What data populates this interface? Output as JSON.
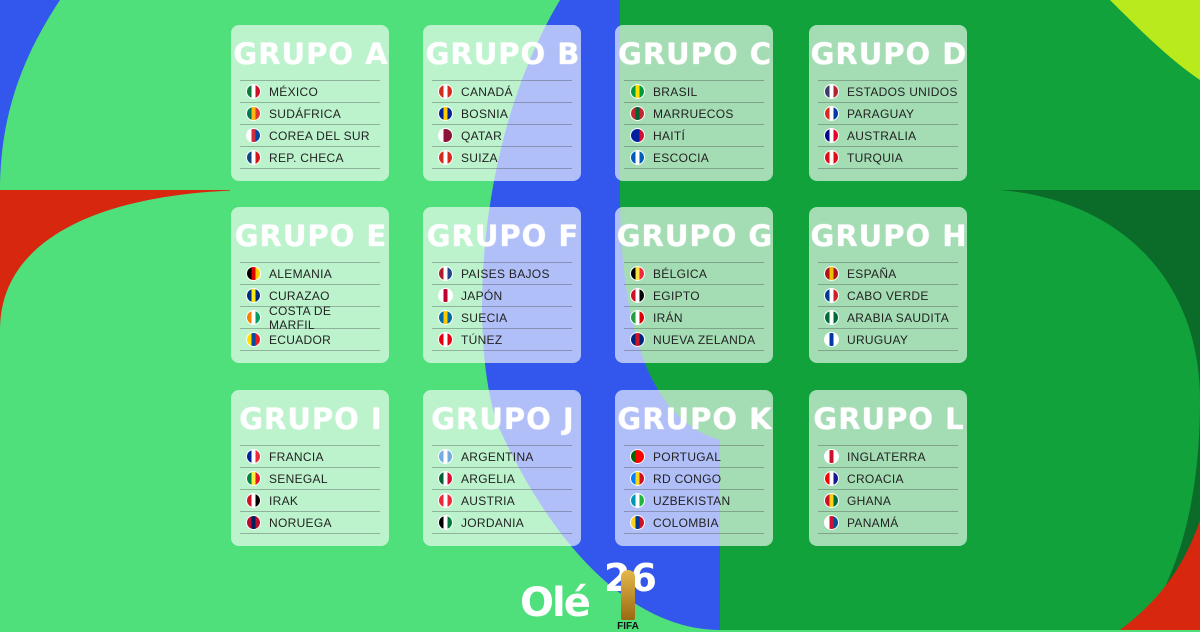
{
  "colors": {
    "light_green": "#4fe07c",
    "blue": "#3357ec",
    "dark_green": "#11a23c",
    "deep_green": "#0b6b28",
    "red": "#d7280f",
    "lime": "#b9ea1c"
  },
  "groups": [
    {
      "title": "GRUPO A",
      "teams": [
        {
          "name": "MÉXICO",
          "flag": [
            "#0a7a3a",
            "#fff",
            "#ce1126"
          ]
        },
        {
          "name": "SUDÁFRICA",
          "flag": [
            "#007a4d",
            "#ffb612",
            "#de3831"
          ]
        },
        {
          "name": "COREA DEL SUR",
          "flag": [
            "#fff",
            "#cd2e3a",
            "#0047a0"
          ]
        },
        {
          "name": "REP. CHECA",
          "flag": [
            "#11457e",
            "#fff",
            "#d7141a"
          ]
        }
      ]
    },
    {
      "title": "GRUPO B",
      "teams": [
        {
          "name": "CANADÁ",
          "flag": [
            "#d52b1e",
            "#fff",
            "#d52b1e"
          ]
        },
        {
          "name": "BOSNIA",
          "flag": [
            "#002395",
            "#fecb00",
            "#002395"
          ]
        },
        {
          "name": "QATAR",
          "flag": [
            "#fff",
            "#8a1538",
            "#8a1538"
          ]
        },
        {
          "name": "SUIZA",
          "flag": [
            "#d52b1e",
            "#fff",
            "#d52b1e"
          ]
        }
      ]
    },
    {
      "title": "GRUPO C",
      "teams": [
        {
          "name": "BRASIL",
          "flag": [
            "#009c3b",
            "#ffdf00",
            "#009c3b"
          ]
        },
        {
          "name": "MARRUECOS",
          "flag": [
            "#c1272d",
            "#006233",
            "#c1272d"
          ]
        },
        {
          "name": "HAITÍ",
          "flag": [
            "#00209f",
            "#00209f",
            "#d21034"
          ]
        },
        {
          "name": "ESCOCIA",
          "flag": [
            "#005eb8",
            "#fff",
            "#005eb8"
          ]
        }
      ]
    },
    {
      "title": "GRUPO D",
      "teams": [
        {
          "name": "ESTADOS UNIDOS",
          "flag": [
            "#3c3b6e",
            "#fff",
            "#b22234"
          ]
        },
        {
          "name": "PARAGUAY",
          "flag": [
            "#d52b1e",
            "#fff",
            "#0038a8"
          ]
        },
        {
          "name": "AUSTRALIA",
          "flag": [
            "#00008b",
            "#fff",
            "#e4002b"
          ]
        },
        {
          "name": "TURQUIA",
          "flag": [
            "#e30a17",
            "#fff",
            "#e30a17"
          ]
        }
      ]
    },
    {
      "title": "GRUPO E",
      "teams": [
        {
          "name": "ALEMANIA",
          "flag": [
            "#000",
            "#dd0000",
            "#ffce00"
          ]
        },
        {
          "name": "CURAZAO",
          "flag": [
            "#002b7f",
            "#f9e814",
            "#002b7f"
          ]
        },
        {
          "name": "COSTA DE MARFIL",
          "flag": [
            "#f77f00",
            "#fff",
            "#009e60"
          ]
        },
        {
          "name": "ECUADOR",
          "flag": [
            "#ffdd00",
            "#034ea2",
            "#ed1c24"
          ]
        }
      ]
    },
    {
      "title": "GRUPO F",
      "teams": [
        {
          "name": "PAISES BAJOS",
          "flag": [
            "#ae1c28",
            "#fff",
            "#21468b"
          ]
        },
        {
          "name": "JAPÓN",
          "flag": [
            "#fff",
            "#bc002d",
            "#fff"
          ]
        },
        {
          "name": "SUECIA",
          "flag": [
            "#006aa7",
            "#fecc00",
            "#006aa7"
          ]
        },
        {
          "name": "TÚNEZ",
          "flag": [
            "#e70013",
            "#fff",
            "#e70013"
          ]
        }
      ]
    },
    {
      "title": "GRUPO G",
      "teams": [
        {
          "name": "BÉLGICA",
          "flag": [
            "#000",
            "#fae042",
            "#ed2939"
          ]
        },
        {
          "name": "EGIPTO",
          "flag": [
            "#ce1126",
            "#fff",
            "#000"
          ]
        },
        {
          "name": "IRÁN",
          "flag": [
            "#239f40",
            "#fff",
            "#da0000"
          ]
        },
        {
          "name": "NUEVA ZELANDA",
          "flag": [
            "#00247d",
            "#cc142b",
            "#00247d"
          ]
        }
      ]
    },
    {
      "title": "GRUPO H",
      "teams": [
        {
          "name": "ESPAÑA",
          "flag": [
            "#aa151b",
            "#f1bf00",
            "#aa151b"
          ]
        },
        {
          "name": "CABO VERDE",
          "flag": [
            "#003893",
            "#fff",
            "#cf2027"
          ]
        },
        {
          "name": "ARABIA SAUDITA",
          "flag": [
            "#006c35",
            "#fff",
            "#006c35"
          ]
        },
        {
          "name": "URUGUAY",
          "flag": [
            "#fff",
            "#0038a8",
            "#fff"
          ]
        }
      ]
    },
    {
      "title": "GRUPO I",
      "teams": [
        {
          "name": "FRANCIA",
          "flag": [
            "#002395",
            "#fff",
            "#ed2939"
          ]
        },
        {
          "name": "SENEGAL",
          "flag": [
            "#00853f",
            "#fdef42",
            "#e31b23"
          ]
        },
        {
          "name": "IRAK",
          "flag": [
            "#ce1126",
            "#fff",
            "#000"
          ]
        },
        {
          "name": "NORUEGA",
          "flag": [
            "#ba0c2f",
            "#00205b",
            "#ba0c2f"
          ]
        }
      ]
    },
    {
      "title": "GRUPO J",
      "teams": [
        {
          "name": "ARGENTINA",
          "flag": [
            "#74acdf",
            "#fff",
            "#74acdf"
          ]
        },
        {
          "name": "ARGELIA",
          "flag": [
            "#006233",
            "#fff",
            "#d21034"
          ]
        },
        {
          "name": "AUSTRIA",
          "flag": [
            "#ed2939",
            "#fff",
            "#ed2939"
          ]
        },
        {
          "name": "JORDANIA",
          "flag": [
            "#000",
            "#fff",
            "#007a3d"
          ]
        }
      ]
    },
    {
      "title": "GRUPO K",
      "teams": [
        {
          "name": "PORTUGAL",
          "flag": [
            "#006600",
            "#ff0000",
            "#ff0000"
          ]
        },
        {
          "name": "RD CONGO",
          "flag": [
            "#007fff",
            "#f7d618",
            "#ce1021"
          ]
        },
        {
          "name": "UZBEKISTAN",
          "flag": [
            "#0099b5",
            "#fff",
            "#1eb53a"
          ]
        },
        {
          "name": "COLOMBIA",
          "flag": [
            "#fcd116",
            "#003893",
            "#ce1126"
          ]
        }
      ]
    },
    {
      "title": "GRUPO L",
      "teams": [
        {
          "name": "INGLATERRA",
          "flag": [
            "#fff",
            "#ce1124",
            "#fff"
          ]
        },
        {
          "name": "CROACIA",
          "flag": [
            "#ff0000",
            "#fff",
            "#171796"
          ]
        },
        {
          "name": "GHANA",
          "flag": [
            "#ce1126",
            "#fcd116",
            "#006b3f"
          ]
        },
        {
          "name": "PANAMÁ",
          "flag": [
            "#fff",
            "#d21034",
            "#005293"
          ]
        }
      ]
    }
  ],
  "branding": {
    "ole_logo": "Olé",
    "wc_number": "26",
    "fifa": "FIFA"
  }
}
